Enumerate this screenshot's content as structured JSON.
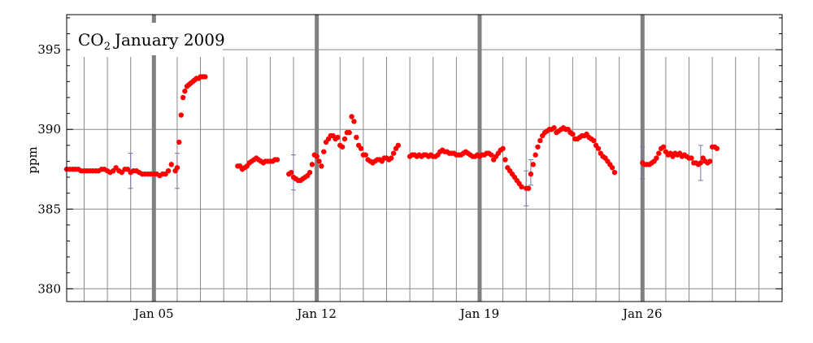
{
  "chart_data": {
    "type": "scatter",
    "title": "January 2009",
    "title_prefix": "CO",
    "title_subscript": "2",
    "ylabel": "ppm",
    "ylim": [
      379.2,
      397.2
    ],
    "xlim": [
      1.25,
      32.0
    ],
    "y_ticks": [
      380,
      385,
      390,
      395
    ],
    "x_ticks": [
      {
        "value": 5,
        "label": "Jan 05"
      },
      {
        "value": 12,
        "label": "Jan 12"
      },
      {
        "value": 19,
        "label": "Jan 19"
      },
      {
        "value": 26,
        "label": "Jan 26"
      }
    ],
    "grid": true,
    "colors": {
      "points": "#ff0000",
      "grid": "#888888",
      "week_lines": "#808080",
      "error_bars": "#7777aa"
    },
    "series": [
      {
        "color": "#ff0000",
        "points": [
          [
            1.25,
            387.5
          ],
          [
            1.37,
            387.5
          ],
          [
            1.5,
            387.5
          ],
          [
            1.62,
            387.5
          ],
          [
            1.75,
            387.5
          ],
          [
            1.87,
            387.4
          ],
          [
            2.0,
            387.4
          ],
          [
            2.12,
            387.4
          ],
          [
            2.25,
            387.4
          ],
          [
            2.37,
            387.4
          ],
          [
            2.5,
            387.4
          ],
          [
            2.62,
            387.4
          ],
          [
            2.75,
            387.5
          ],
          [
            2.87,
            387.5
          ],
          [
            3.0,
            387.4
          ],
          [
            3.12,
            387.3
          ],
          [
            3.25,
            387.4
          ],
          [
            3.37,
            387.6
          ],
          [
            3.5,
            387.4
          ],
          [
            3.62,
            387.3
          ],
          [
            3.75,
            387.5
          ],
          [
            3.87,
            387.5
          ],
          [
            4.0,
            387.3
          ],
          [
            4.12,
            387.4
          ],
          [
            4.25,
            387.4
          ],
          [
            4.37,
            387.3
          ],
          [
            4.5,
            387.2
          ],
          [
            4.62,
            387.2
          ],
          [
            4.75,
            387.2
          ],
          [
            4.87,
            387.2
          ],
          [
            5.0,
            387.2
          ],
          [
            5.12,
            387.2
          ],
          [
            5.25,
            387.1
          ],
          [
            5.37,
            387.2
          ],
          [
            5.5,
            387.2
          ],
          [
            5.62,
            387.4
          ],
          [
            5.75,
            387.8
          ],
          [
            5.92,
            387.4
          ],
          [
            6.0,
            387.6
          ],
          [
            6.08,
            389.2
          ],
          [
            6.17,
            390.9
          ],
          [
            6.25,
            392.0
          ],
          [
            6.33,
            392.4
          ],
          [
            6.42,
            392.7
          ],
          [
            6.5,
            392.8
          ],
          [
            6.58,
            392.9
          ],
          [
            6.67,
            393.0
          ],
          [
            6.75,
            393.1
          ],
          [
            6.83,
            393.2
          ],
          [
            6.92,
            393.2
          ],
          [
            7.0,
            393.3
          ],
          [
            7.1,
            393.3
          ],
          [
            7.2,
            393.3
          ],
          [
            8.6,
            387.7
          ],
          [
            8.7,
            387.7
          ],
          [
            8.8,
            387.5
          ],
          [
            8.9,
            387.6
          ],
          [
            9.0,
            387.7
          ],
          [
            9.1,
            387.9
          ],
          [
            9.2,
            388.0
          ],
          [
            9.3,
            388.1
          ],
          [
            9.4,
            388.2
          ],
          [
            9.5,
            388.1
          ],
          [
            9.6,
            388.0
          ],
          [
            9.7,
            387.9
          ],
          [
            9.8,
            388.0
          ],
          [
            9.9,
            388.0
          ],
          [
            10.0,
            388.0
          ],
          [
            10.1,
            388.0
          ],
          [
            10.2,
            388.1
          ],
          [
            10.3,
            388.1
          ],
          [
            10.8,
            387.2
          ],
          [
            10.9,
            387.3
          ],
          [
            11.0,
            387.0
          ],
          [
            11.1,
            386.9
          ],
          [
            11.2,
            386.8
          ],
          [
            11.3,
            386.8
          ],
          [
            11.4,
            386.9
          ],
          [
            11.5,
            387.0
          ],
          [
            11.6,
            387.1
          ],
          [
            11.7,
            387.3
          ],
          [
            11.8,
            387.8
          ],
          [
            11.9,
            388.4
          ],
          [
            12.0,
            388.3
          ],
          [
            12.1,
            388.0
          ],
          [
            12.2,
            387.7
          ],
          [
            12.3,
            388.6
          ],
          [
            12.4,
            389.2
          ],
          [
            12.5,
            389.4
          ],
          [
            12.6,
            389.6
          ],
          [
            12.7,
            389.6
          ],
          [
            12.8,
            389.4
          ],
          [
            12.9,
            389.5
          ],
          [
            13.0,
            389.0
          ],
          [
            13.1,
            388.9
          ],
          [
            13.2,
            389.4
          ],
          [
            13.3,
            389.8
          ],
          [
            13.4,
            389.8
          ],
          [
            13.5,
            390.8
          ],
          [
            13.6,
            390.5
          ],
          [
            13.7,
            389.5
          ],
          [
            13.8,
            389.0
          ],
          [
            13.9,
            388.8
          ],
          [
            14.0,
            388.4
          ],
          [
            14.1,
            388.4
          ],
          [
            14.2,
            388.1
          ],
          [
            14.3,
            388.0
          ],
          [
            14.4,
            387.9
          ],
          [
            14.5,
            388.0
          ],
          [
            14.6,
            388.1
          ],
          [
            14.7,
            388.1
          ],
          [
            14.8,
            388.0
          ],
          [
            14.9,
            388.2
          ],
          [
            15.0,
            388.2
          ],
          [
            15.1,
            388.1
          ],
          [
            15.2,
            388.2
          ],
          [
            15.3,
            388.5
          ],
          [
            15.4,
            388.8
          ],
          [
            15.5,
            389.0
          ],
          [
            16.0,
            388.3
          ],
          [
            16.1,
            388.4
          ],
          [
            16.2,
            388.4
          ],
          [
            16.3,
            388.3
          ],
          [
            16.4,
            388.4
          ],
          [
            16.5,
            388.3
          ],
          [
            16.6,
            388.4
          ],
          [
            16.7,
            388.4
          ],
          [
            16.8,
            388.3
          ],
          [
            16.9,
            388.4
          ],
          [
            17.0,
            388.3
          ],
          [
            17.1,
            388.3
          ],
          [
            17.2,
            388.4
          ],
          [
            17.3,
            388.6
          ],
          [
            17.4,
            388.7
          ],
          [
            17.5,
            388.6
          ],
          [
            17.6,
            388.6
          ],
          [
            17.7,
            388.5
          ],
          [
            17.8,
            388.5
          ],
          [
            17.9,
            388.5
          ],
          [
            18.0,
            388.4
          ],
          [
            18.1,
            388.4
          ],
          [
            18.2,
            388.4
          ],
          [
            18.3,
            388.5
          ],
          [
            18.4,
            388.6
          ],
          [
            18.5,
            388.5
          ],
          [
            18.6,
            388.4
          ],
          [
            18.7,
            388.3
          ],
          [
            18.8,
            388.3
          ],
          [
            18.9,
            388.4
          ],
          [
            19.0,
            388.3
          ],
          [
            19.1,
            388.4
          ],
          [
            19.2,
            388.4
          ],
          [
            19.3,
            388.5
          ],
          [
            19.4,
            388.5
          ],
          [
            19.5,
            388.4
          ],
          [
            19.6,
            388.1
          ],
          [
            19.7,
            388.3
          ],
          [
            19.8,
            388.5
          ],
          [
            19.9,
            388.7
          ],
          [
            20.0,
            388.8
          ],
          [
            20.1,
            388.1
          ],
          [
            20.2,
            387.6
          ],
          [
            20.3,
            387.4
          ],
          [
            20.4,
            387.2
          ],
          [
            20.5,
            387.0
          ],
          [
            20.6,
            386.8
          ],
          [
            20.7,
            386.6
          ],
          [
            20.8,
            386.4
          ],
          [
            21.0,
            386.3
          ],
          [
            21.1,
            386.3
          ],
          [
            21.2,
            387.2
          ],
          [
            21.3,
            387.8
          ],
          [
            21.4,
            388.4
          ],
          [
            21.5,
            388.9
          ],
          [
            21.6,
            389.3
          ],
          [
            21.7,
            389.6
          ],
          [
            21.8,
            389.8
          ],
          [
            21.9,
            389.9
          ],
          [
            22.0,
            390.0
          ],
          [
            22.1,
            390.0
          ],
          [
            22.2,
            390.1
          ],
          [
            22.3,
            389.8
          ],
          [
            22.4,
            389.9
          ],
          [
            22.5,
            390.0
          ],
          [
            22.6,
            390.1
          ],
          [
            22.7,
            390.0
          ],
          [
            22.8,
            390.0
          ],
          [
            22.9,
            389.8
          ],
          [
            23.0,
            389.7
          ],
          [
            23.1,
            389.4
          ],
          [
            23.2,
            389.4
          ],
          [
            23.3,
            389.5
          ],
          [
            23.4,
            389.6
          ],
          [
            23.5,
            389.6
          ],
          [
            23.6,
            389.7
          ],
          [
            23.7,
            389.5
          ],
          [
            23.8,
            389.4
          ],
          [
            23.9,
            389.3
          ],
          [
            24.0,
            389.0
          ],
          [
            24.1,
            388.8
          ],
          [
            24.2,
            388.5
          ],
          [
            24.3,
            388.3
          ],
          [
            24.4,
            388.2
          ],
          [
            24.5,
            388.0
          ],
          [
            24.6,
            387.8
          ],
          [
            24.7,
            387.6
          ],
          [
            24.8,
            387.3
          ],
          [
            26.0,
            387.9
          ],
          [
            26.1,
            387.8
          ],
          [
            26.2,
            387.8
          ],
          [
            26.3,
            387.8
          ],
          [
            26.4,
            387.9
          ],
          [
            26.5,
            388.0
          ],
          [
            26.6,
            388.2
          ],
          [
            26.7,
            388.5
          ],
          [
            26.8,
            388.8
          ],
          [
            26.9,
            388.9
          ],
          [
            27.0,
            388.6
          ],
          [
            27.1,
            388.4
          ],
          [
            27.2,
            388.5
          ],
          [
            27.3,
            388.3
          ],
          [
            27.4,
            388.5
          ],
          [
            27.5,
            388.4
          ],
          [
            27.6,
            388.5
          ],
          [
            27.7,
            388.3
          ],
          [
            27.8,
            388.4
          ],
          [
            27.9,
            388.3
          ],
          [
            28.0,
            388.2
          ],
          [
            28.1,
            388.2
          ],
          [
            28.2,
            387.9
          ],
          [
            28.3,
            387.9
          ],
          [
            28.4,
            387.8
          ],
          [
            28.5,
            387.9
          ],
          [
            28.6,
            388.2
          ],
          [
            28.7,
            388.0
          ],
          [
            28.8,
            387.9
          ],
          [
            28.9,
            388.0
          ],
          [
            29.0,
            388.9
          ],
          [
            29.1,
            388.9
          ],
          [
            29.2,
            388.8
          ]
        ]
      }
    ],
    "error_bars": [
      {
        "x": 4.0,
        "y": 387.4,
        "low": 386.3,
        "high": 388.5
      },
      {
        "x": 6.0,
        "y": 387.4,
        "low": 386.3,
        "high": 388.5
      },
      {
        "x": 11.0,
        "y": 387.3,
        "low": 386.2,
        "high": 388.4
      },
      {
        "x": 21.0,
        "y": 386.3,
        "low": 385.2,
        "high": 387.4
      },
      {
        "x": 21.2,
        "y": 387.3,
        "low": 386.5,
        "high": 388.1
      },
      {
        "x": 26.0,
        "y": 387.9,
        "low": 386.9,
        "high": 388.9
      },
      {
        "x": 28.5,
        "y": 387.9,
        "low": 386.8,
        "high": 389.0
      }
    ]
  }
}
